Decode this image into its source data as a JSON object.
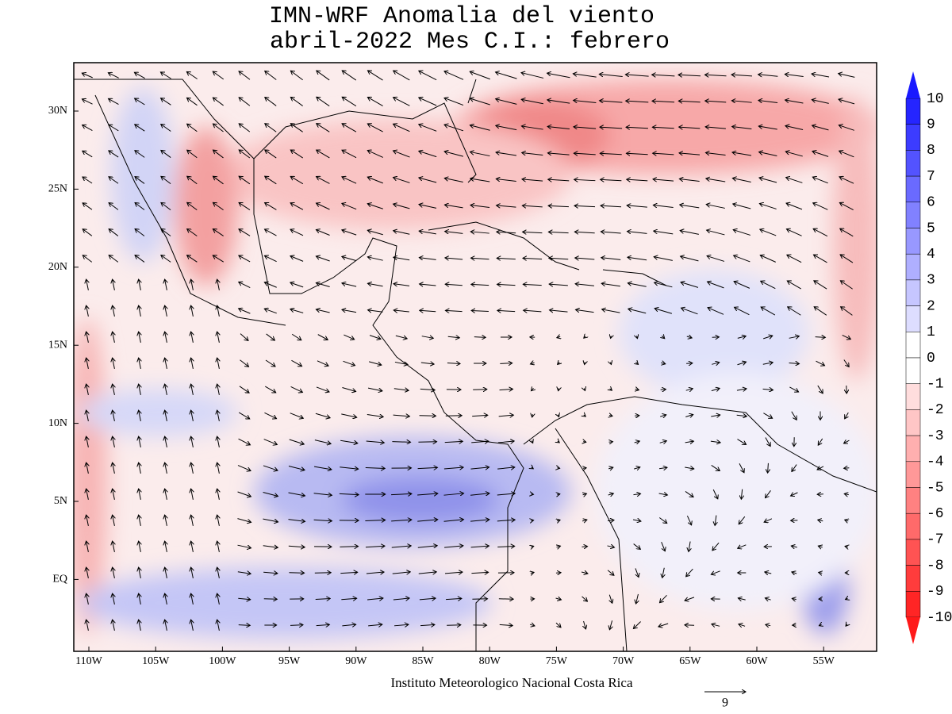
{
  "header": {
    "title": "IMN-WRF Anomalia del viento",
    "subtitle": "abril-2022 Mes C.I.: febrero"
  },
  "map": {
    "lat_labels": [
      "30N",
      "25N",
      "20N",
      "15N",
      "10N",
      "5N",
      "EQ"
    ],
    "lon_labels": [
      "110W",
      "105W",
      "100W",
      "95W",
      "90W",
      "85W",
      "80W",
      "75W",
      "70W",
      "65W",
      "60W",
      "55W"
    ],
    "credit": "Instituto Meteorologico Nacional Costa Rica",
    "reference_vector": "9"
  },
  "colorbar": {
    "labels": [
      "10",
      "9",
      "8",
      "7",
      "6",
      "5",
      "4",
      "3",
      "2",
      "1",
      "0",
      "-1",
      "-2",
      "-3",
      "-4",
      "-5",
      "-6",
      "-7",
      "-8",
      "-9",
      "-10"
    ]
  }
}
